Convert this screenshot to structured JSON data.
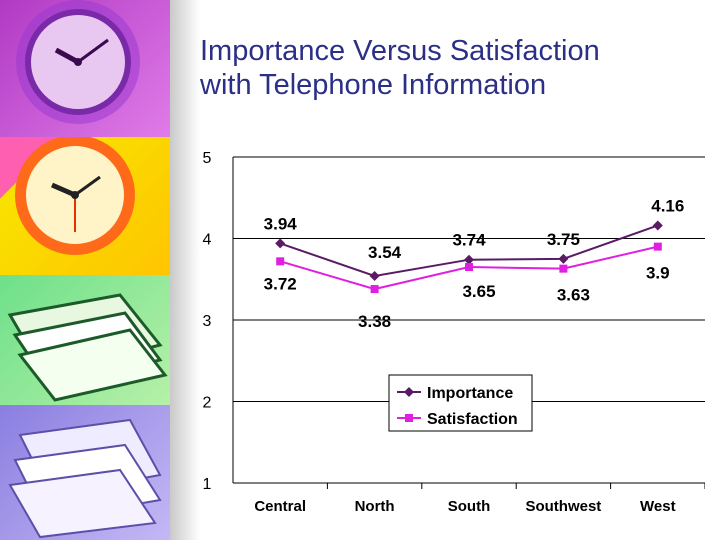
{
  "slide": {
    "title_line1": "Importance Versus Satisfaction",
    "title_line2": "with Telephone Information",
    "title_color": "#2b2f86"
  },
  "sidebar": {
    "panels": [
      {
        "description": "purple clock",
        "color": "#c64fd8",
        "icon": "clock-icon"
      },
      {
        "description": "orange clock",
        "color": "#f5b800",
        "icon": "clock-icon"
      },
      {
        "description": "green books",
        "color": "#5fd87a",
        "icon": "books-icon"
      },
      {
        "description": "lavender papers",
        "color": "#9b8fe8",
        "icon": "papers-icon"
      }
    ]
  },
  "chart_data": {
    "type": "line",
    "categories": [
      "Central",
      "North",
      "South",
      "Southwest",
      "West"
    ],
    "series": [
      {
        "name": "Importance",
        "values": [
          3.94,
          3.54,
          3.74,
          3.75,
          4.16
        ],
        "labels": [
          "3.94",
          "3.54",
          "3.74",
          "3.75",
          "4.16"
        ],
        "color": "#5b1a66",
        "marker": "diamond"
      },
      {
        "name": "Satisfaction",
        "values": [
          3.72,
          3.38,
          3.65,
          3.63,
          3.9
        ],
        "labels": [
          "3.72",
          "3.38",
          "3.65",
          "3.63",
          "3.9"
        ],
        "color": "#e020e0",
        "marker": "square"
      }
    ],
    "yticks": [
      "1",
      "2",
      "3",
      "4",
      "5"
    ],
    "ylim": [
      1,
      5
    ],
    "grid": true,
    "legend_position": "lower-middle",
    "title": "",
    "xlabel": "",
    "ylabel": ""
  }
}
